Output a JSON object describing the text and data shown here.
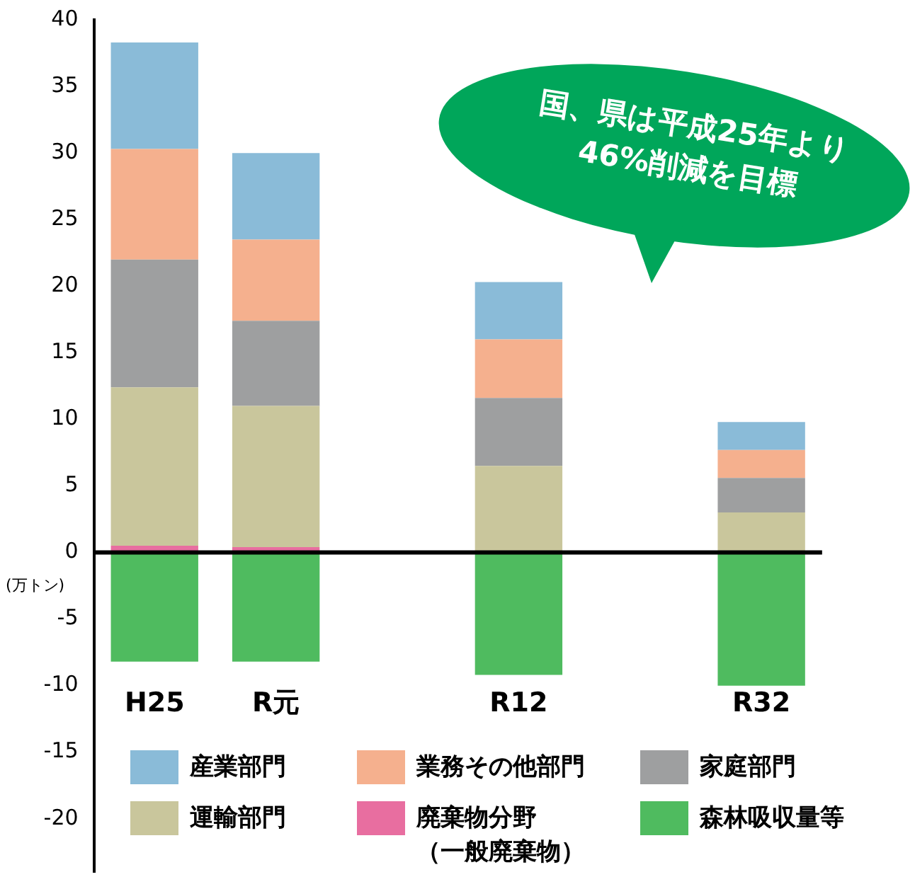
{
  "chart_data": {
    "type": "bar",
    "stacked": true,
    "ylabel": "(万トン)",
    "categories": [
      "H25",
      "R元",
      null,
      "R12",
      null,
      "R32"
    ],
    "series": [
      {
        "name": "廃棄物分野（一般廃棄物）",
        "color": "#e86ea0",
        "values": [
          0.5,
          0.4,
          null,
          null,
          null,
          0
        ]
      },
      {
        "name": "運輸部門",
        "color": "#c9c69c",
        "values": [
          11.9,
          10.6,
          null,
          6.5,
          null,
          3.0
        ]
      },
      {
        "name": "家庭部門",
        "color": "#9e9fa0",
        "values": [
          9.6,
          6.4,
          null,
          5.1,
          null,
          2.6
        ]
      },
      {
        "name": "業務その他部門",
        "color": "#f5b08e",
        "values": [
          8.3,
          6.1,
          null,
          4.4,
          null,
          2.1
        ]
      },
      {
        "name": "産業部門",
        "color": "#8abbd8",
        "values": [
          8.0,
          6.5,
          null,
          4.3,
          null,
          2.1
        ]
      },
      {
        "name": "森林吸収量等",
        "color": "#4fbb5f",
        "values": [
          -8.2,
          -8.2,
          null,
          -9.2,
          null,
          -10
        ]
      }
    ],
    "ylim": [
      -24,
      40
    ],
    "yticks": [
      -20,
      -15,
      -10,
      -5,
      0,
      5,
      10,
      15,
      20,
      25,
      30,
      35,
      40
    ],
    "grid": false,
    "ref_lines": [
      {
        "axis": "y",
        "value": 0,
        "color": "#000000"
      }
    ],
    "legend": "bottom",
    "annotations": [
      "国、県は平成25年より\n46%削減を目標"
    ]
  }
}
